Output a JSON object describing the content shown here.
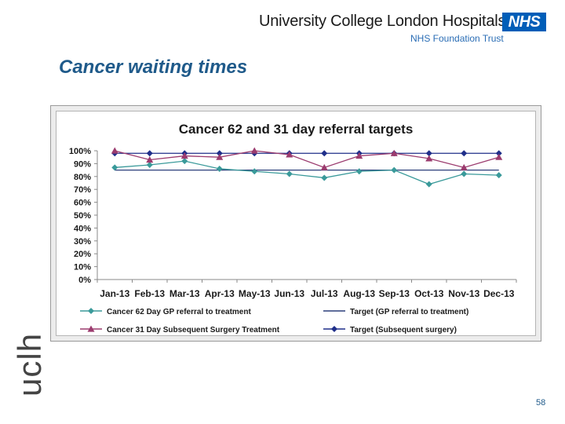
{
  "header": {
    "org_name": "University College London Hospitals",
    "org_subtitle": "NHS Foundation Trust",
    "nhs_logo": "NHS"
  },
  "slide": {
    "title": "Cancer waiting times",
    "side_logo": "uclh",
    "page_number": "58"
  },
  "chart_data": {
    "type": "line",
    "title": "Cancer 62 and 31 day referral targets",
    "xlabel": "",
    "ylabel": "",
    "ylim": [
      0,
      100
    ],
    "yticks": [
      "0%",
      "10%",
      "20%",
      "30%",
      "40%",
      "50%",
      "60%",
      "70%",
      "80%",
      "90%",
      "100%"
    ],
    "categories": [
      "Jan-13",
      "Feb-13",
      "Mar-13",
      "Apr-13",
      "May-13",
      "Jun-13",
      "Jul-13",
      "Aug-13",
      "Sep-13",
      "Oct-13",
      "Nov-13",
      "Dec-13"
    ],
    "grid": false,
    "legend_position": "bottom",
    "series": [
      {
        "name": "Cancer 62 Day GP referral to treatment",
        "color": "#3a9a9a",
        "marker": "diamond",
        "values": [
          87,
          89,
          92,
          86,
          84,
          82,
          79,
          84,
          85,
          74,
          82,
          81
        ]
      },
      {
        "name": "Target (GP referral to treatment)",
        "color": "#2b3f7a",
        "marker": "none",
        "values": [
          85,
          85,
          85,
          85,
          85,
          85,
          85,
          85,
          85,
          85,
          85,
          85
        ]
      },
      {
        "name": "Cancer 31 Day Subsequent Surgery Treatment",
        "color": "#9b3b6e",
        "marker": "triangle",
        "values": [
          100,
          93,
          96,
          95,
          100,
          97,
          87,
          96,
          98,
          94,
          87,
          95
        ]
      },
      {
        "name": "Target (Subsequent surgery)",
        "color": "#1f2f8a",
        "marker": "diamond",
        "values": [
          98,
          98,
          98,
          98,
          98,
          98,
          98,
          98,
          98,
          98,
          98,
          98
        ]
      }
    ]
  }
}
